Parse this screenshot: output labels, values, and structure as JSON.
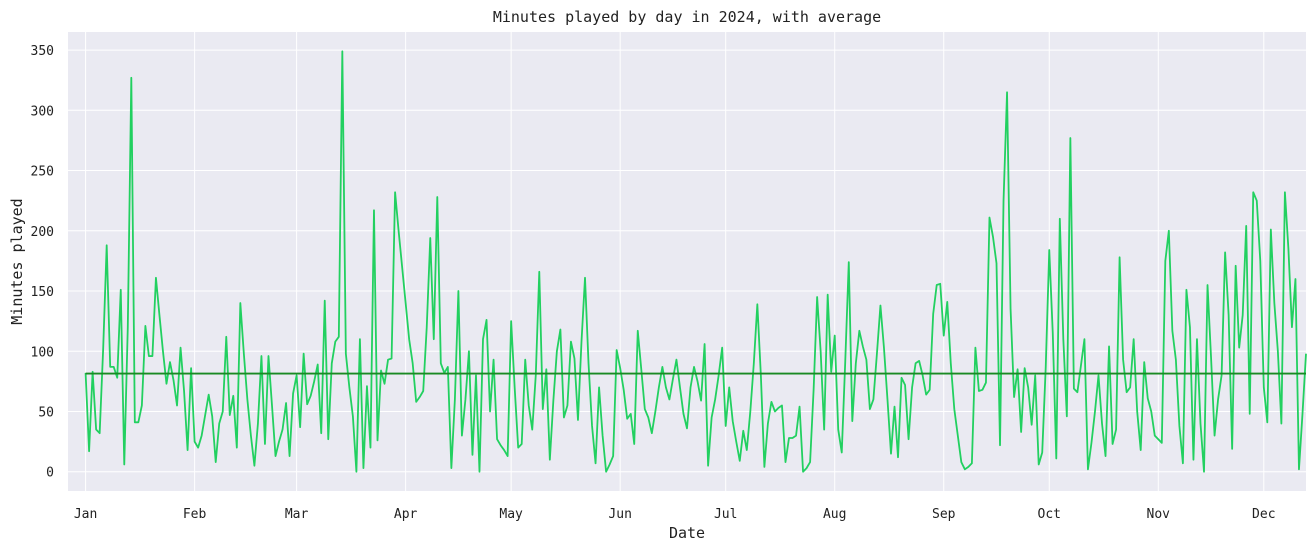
{
  "chart_data": {
    "type": "line",
    "title": "Minutes played by day in 2024, with average",
    "xlabel": "Date",
    "ylabel": "Minutes played",
    "ylim": [
      -16,
      365
    ],
    "xlim": [
      "2023-12-27",
      "2024-12-13"
    ],
    "yticks": [
      0,
      50,
      100,
      150,
      200,
      250,
      300,
      350
    ],
    "xticks": [
      {
        "date": "2024-01-01",
        "label": "Jan"
      },
      {
        "date": "2024-02-01",
        "label": "Feb"
      },
      {
        "date": "2024-03-01",
        "label": "Mar"
      },
      {
        "date": "2024-04-01",
        "label": "Apr"
      },
      {
        "date": "2024-05-01",
        "label": "May"
      },
      {
        "date": "2024-06-01",
        "label": "Jun"
      },
      {
        "date": "2024-07-01",
        "label": "Jul"
      },
      {
        "date": "2024-08-01",
        "label": "Aug"
      },
      {
        "date": "2024-09-01",
        "label": "Sep"
      },
      {
        "date": "2024-10-01",
        "label": "Oct"
      },
      {
        "date": "2024-11-01",
        "label": "Nov"
      },
      {
        "date": "2024-12-01",
        "label": "Dec"
      }
    ],
    "grid": true,
    "background": "#eaeaf2",
    "series": [
      {
        "color": "#22d060",
        "start_date": "2024-01-01",
        "values": [
          82,
          17,
          83,
          35,
          32,
          102,
          188,
          87,
          87,
          78,
          151,
          6,
          120,
          327,
          41,
          41,
          55,
          121,
          96,
          96,
          161,
          130,
          100,
          73,
          91,
          76,
          55,
          103,
          67,
          18,
          86,
          25,
          20,
          30,
          47,
          64,
          46,
          8,
          40,
          50,
          112,
          47,
          63,
          20,
          140,
          98,
          60,
          30,
          5,
          40,
          96,
          23,
          96,
          55,
          13,
          25,
          35,
          57,
          13,
          65,
          80,
          37,
          98,
          56,
          63,
          75,
          89,
          32,
          142,
          27,
          90,
          108,
          112,
          349,
          98,
          70,
          46,
          0,
          110,
          3,
          71,
          20,
          217,
          26,
          84,
          73,
          93,
          94,
          232,
          200,
          170,
          140,
          110,
          90,
          58,
          62,
          67,
          120,
          194,
          110,
          228,
          90,
          82,
          87,
          3,
          60,
          150,
          30,
          60,
          100,
          14,
          80,
          0,
          110,
          126,
          50,
          93,
          27,
          22,
          18,
          13,
          125,
          70,
          20,
          23,
          93,
          55,
          35,
          80,
          166,
          52,
          85,
          10,
          59,
          100,
          118,
          45,
          55,
          108,
          94,
          43,
          108,
          161,
          90,
          38,
          7,
          70,
          30,
          0,
          6,
          13,
          101,
          86,
          68,
          44,
          48,
          23,
          117,
          85,
          52,
          45,
          32,
          50,
          70,
          87,
          70,
          60,
          77,
          93,
          70,
          48,
          36,
          70,
          87,
          75,
          59,
          106,
          5,
          45,
          60,
          80,
          103,
          38,
          70,
          42,
          25,
          9,
          34,
          18,
          50,
          90,
          139,
          80,
          4,
          40,
          58,
          50,
          53,
          55,
          8,
          28,
          28,
          30,
          54,
          0,
          3,
          8,
          68,
          145,
          100,
          35,
          147,
          83,
          113,
          35,
          16,
          92,
          174,
          42,
          90,
          117,
          104,
          93,
          52,
          60,
          98,
          138,
          103,
          60,
          15,
          54,
          12,
          78,
          72,
          27,
          70,
          90,
          92,
          80,
          64,
          68,
          131,
          155,
          156,
          113,
          141,
          90,
          52,
          30,
          8,
          2,
          4,
          7,
          103,
          67,
          68,
          74,
          211,
          195,
          173,
          22,
          225,
          315,
          135,
          62,
          85,
          33,
          86,
          70,
          39,
          80,
          6,
          16,
          87,
          184,
          115,
          11,
          210,
          110,
          46,
          277,
          69,
          66,
          88,
          110,
          2,
          24,
          50,
          80,
          40,
          13,
          104,
          23,
          35,
          178,
          93,
          66,
          70,
          110,
          50,
          18,
          91,
          61,
          50,
          30,
          27,
          24,
          175,
          200,
          117,
          93,
          38,
          7,
          151,
          120,
          10,
          110,
          40,
          0,
          155,
          95,
          30,
          60,
          80,
          182,
          130,
          19,
          171,
          103,
          130,
          204,
          48,
          232,
          225,
          175,
          70,
          41,
          201,
          140,
          100,
          40,
          232,
          185,
          120,
          160,
          2,
          48,
          98
        ]
      }
    ],
    "average": {
      "value": 81.5,
      "color": "#1a8a24"
    }
  }
}
